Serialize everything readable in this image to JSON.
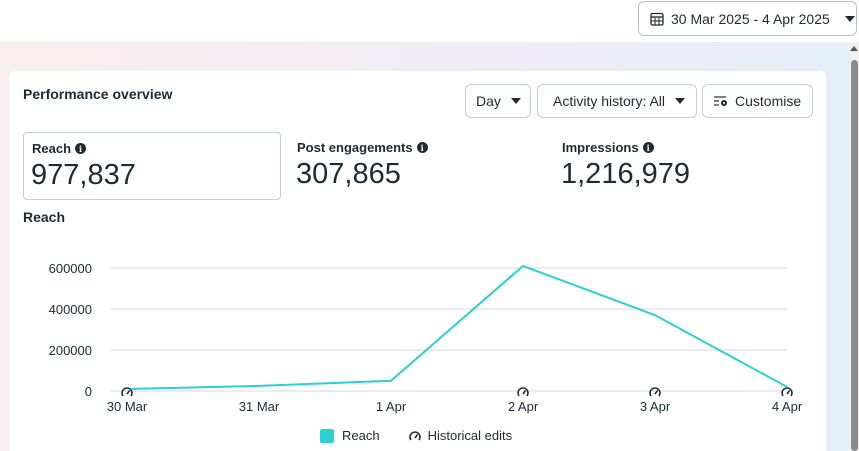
{
  "date_range": {
    "label": "30 Mar 2025 - 4 Apr 2025",
    "icon": "calendar-icon"
  },
  "card": {
    "title": "Performance overview",
    "controls": {
      "day": "Day",
      "activity": "Activity history: All",
      "customise": "Customise"
    },
    "metrics": [
      {
        "label": "Reach",
        "value": "977,837",
        "selected": true
      },
      {
        "label": "Post engagements",
        "value": "307,865",
        "selected": false
      },
      {
        "label": "Impressions",
        "value": "1,216,979",
        "selected": false
      }
    ],
    "chart_title": "Reach"
  },
  "legend": {
    "series": "Reach",
    "edits": "Historical edits"
  },
  "colors": {
    "series": "#2ecfcf",
    "grid": "#e4e6e9"
  },
  "chart_data": {
    "type": "line",
    "title": "Reach",
    "xlabel": "",
    "ylabel": "",
    "categories": [
      "30 Mar",
      "31 Mar",
      "1 Apr",
      "2 Apr",
      "3 Apr",
      "4 Apr"
    ],
    "series": [
      {
        "name": "Reach",
        "values": [
          10000,
          25000,
          50000,
          610000,
          370000,
          20000
        ]
      }
    ],
    "historical_edit_markers": [
      "30 Mar",
      "2 Apr",
      "3 Apr",
      "4 Apr"
    ],
    "yticks": [
      0,
      200000,
      400000,
      600000
    ],
    "ytick_labels": [
      "0",
      "200000",
      "400000",
      "600000"
    ],
    "ylim": [
      0,
      600000
    ],
    "grid": true,
    "legend": "bottom-center"
  }
}
